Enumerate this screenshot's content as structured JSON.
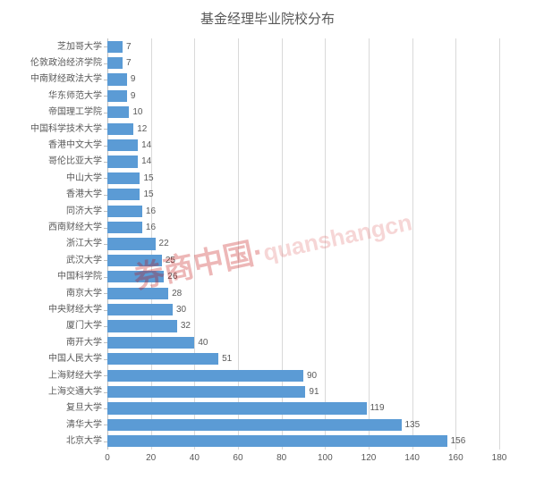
{
  "chart": {
    "title": "基金经理毕业院校分布",
    "type": "bar-horizontal",
    "bar_color": "#5b9bd5",
    "background_color": "#ffffff",
    "grid_color": "#d9d9d9",
    "axis_color": "#bfbfbf",
    "text_color": "#595959",
    "title_fontsize": 15,
    "label_fontsize": 10,
    "xlim": [
      0,
      180
    ],
    "xtick_step": 20,
    "xticks": [
      0,
      20,
      40,
      60,
      80,
      100,
      120,
      140,
      160,
      180
    ],
    "categories": [
      "芝加哥大学",
      "伦敦政治经济学院",
      "中南财经政法大学",
      "华东师范大学",
      "帝国理工学院",
      "中国科学技术大学",
      "香港中文大学",
      "哥伦比亚大学",
      "中山大学",
      "香港大学",
      "同济大学",
      "西南财经大学",
      "浙江大学",
      "武汉大学",
      "中国科学院",
      "南京大学",
      "中央财经大学",
      "厦门大学",
      "南开大学",
      "中国人民大学",
      "上海财经大学",
      "上海交通大学",
      "复旦大学",
      "清华大学",
      "北京大学"
    ],
    "values": [
      7,
      7,
      9,
      9,
      10,
      12,
      14,
      14,
      15,
      15,
      16,
      16,
      22,
      25,
      26,
      28,
      30,
      32,
      40,
      51,
      90,
      91,
      119,
      135,
      156
    ],
    "bar_height_ratio": 0.71
  },
  "watermark": {
    "zh": "券商中国·",
    "en": "quanshangcn"
  }
}
